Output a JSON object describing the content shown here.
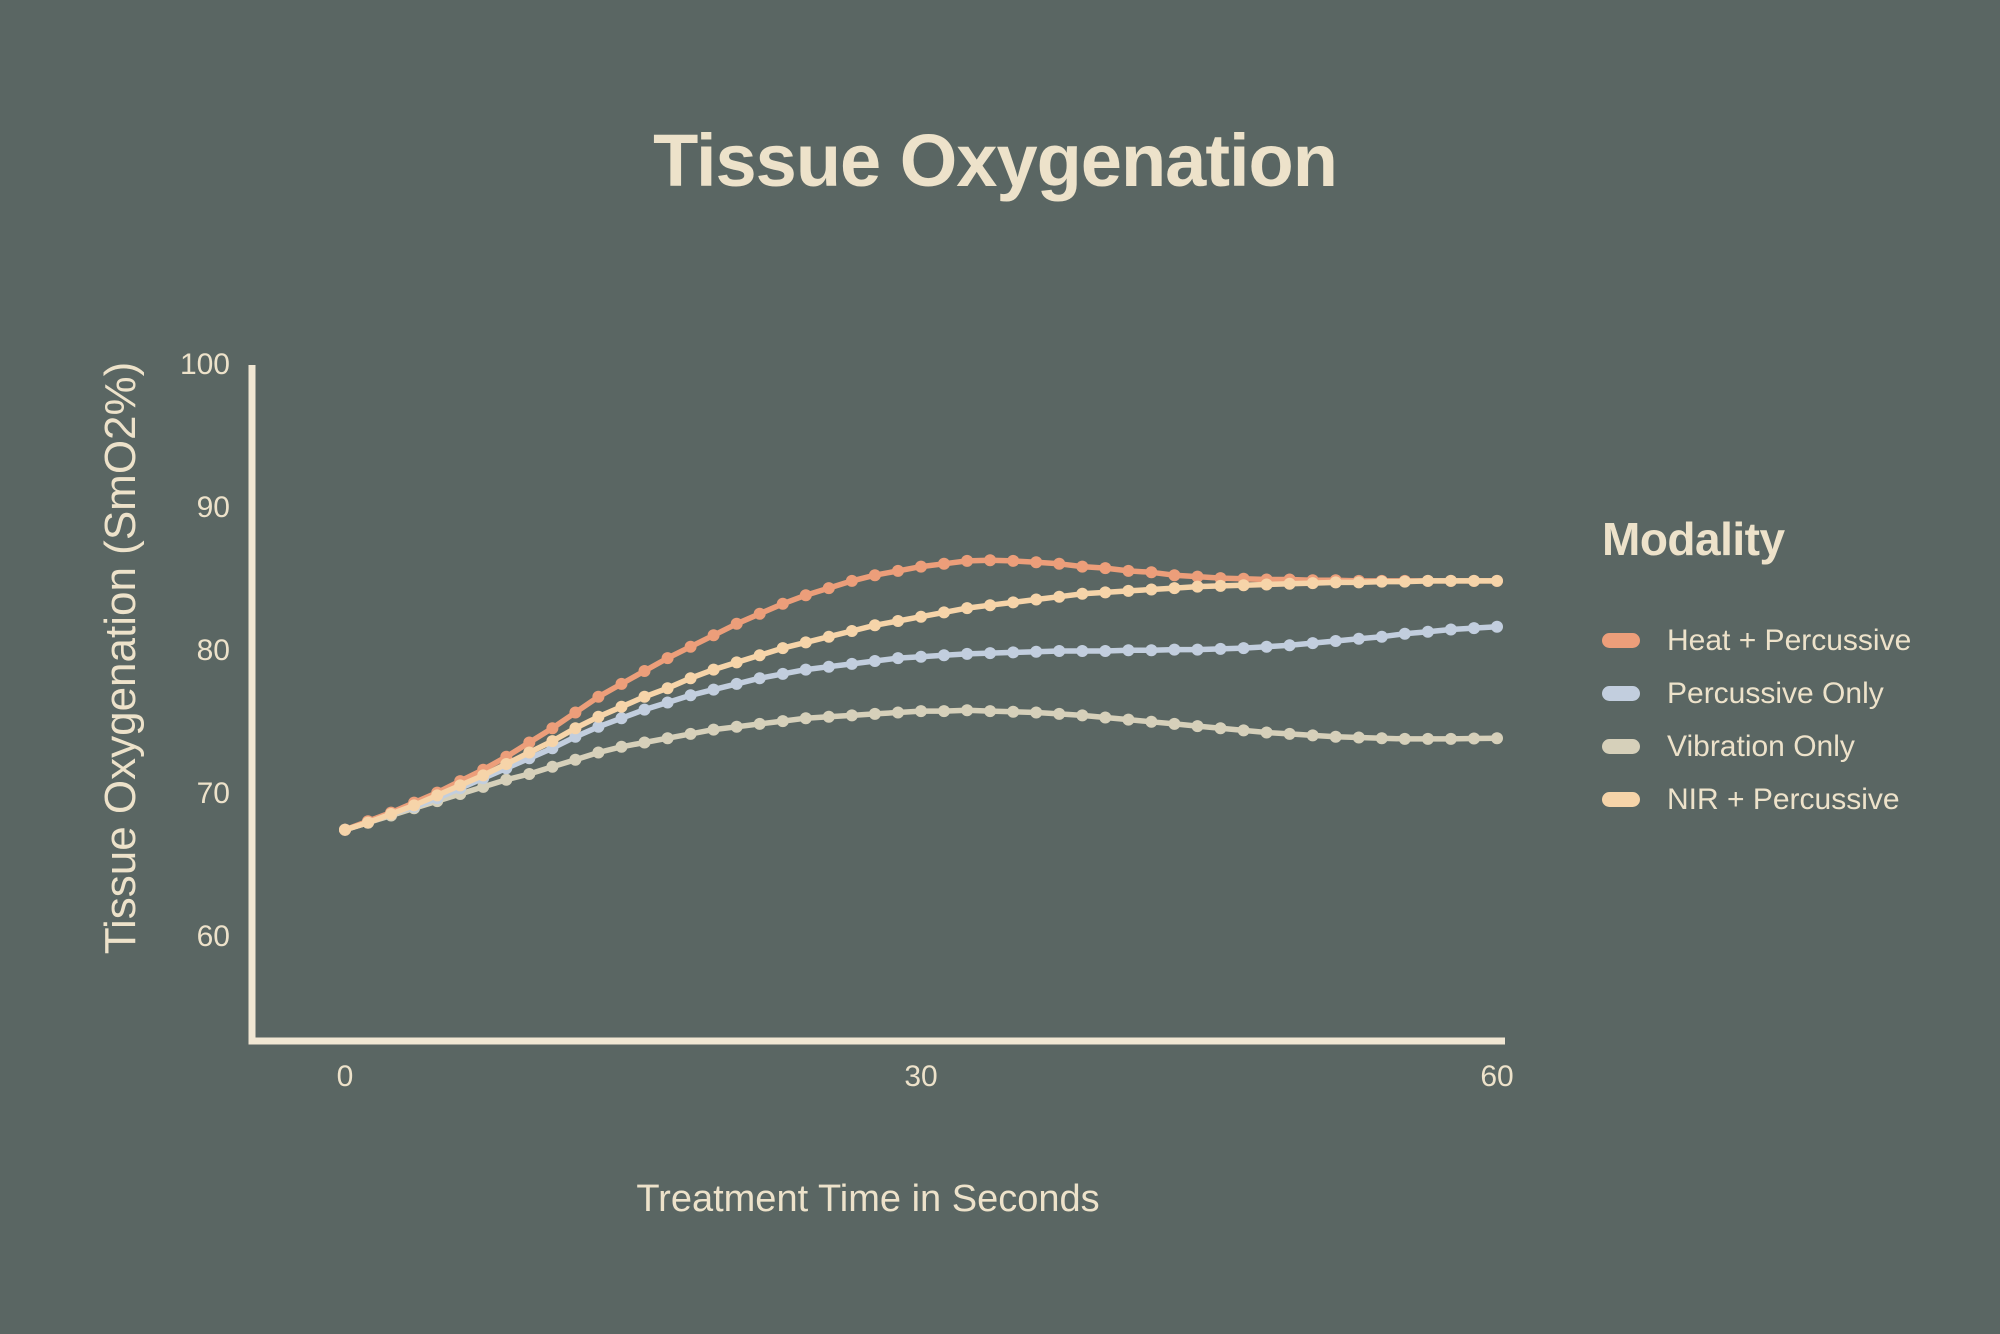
{
  "colors": {
    "background": "#5A6663",
    "text": "#EDE2CA",
    "axis": "#F1E7D3"
  },
  "chart_data": {
    "type": "line",
    "title": "Tissue Oxygenation",
    "xlabel": "Treatment Time in Seconds",
    "ylabel": "Tissue Oxygenation (SmO2%)",
    "legend_title": "Modality",
    "legend_position": "right",
    "grid": false,
    "x_ticks": [
      0,
      30,
      60
    ],
    "y_ticks": [
      100,
      90,
      80,
      70,
      60
    ],
    "xlim": [
      0,
      60
    ],
    "ylim": [
      53,
      100
    ],
    "x_start": 0,
    "x_step": 1.2,
    "point_radius": 6,
    "line_width": 5.5,
    "draw_order": [
      2,
      1,
      0,
      3
    ],
    "series": [
      {
        "name": "Heat + Percussive",
        "color": "#EC9E7A",
        "values": [
          67.5,
          68.1,
          68.7,
          69.4,
          70.1,
          70.9,
          71.7,
          72.6,
          73.6,
          74.6,
          75.7,
          76.8,
          77.7,
          78.6,
          79.5,
          80.3,
          81.1,
          81.9,
          82.6,
          83.3,
          83.9,
          84.4,
          84.9,
          85.3,
          85.6,
          85.9,
          86.1,
          86.3,
          86.35,
          86.3,
          86.2,
          86.1,
          85.9,
          85.8,
          85.6,
          85.5,
          85.3,
          85.2,
          85.1,
          85.05,
          85.0,
          85.0,
          84.95,
          84.95,
          84.9,
          84.9,
          84.9,
          84.9,
          84.9,
          84.9,
          84.9
        ]
      },
      {
        "name": "Percussive Only",
        "color": "#C2CEDE",
        "values": [
          67.5,
          68.0,
          68.6,
          69.1,
          69.7,
          70.4,
          71.1,
          71.8,
          72.5,
          73.2,
          74.0,
          74.7,
          75.3,
          75.9,
          76.4,
          76.9,
          77.3,
          77.7,
          78.1,
          78.4,
          78.7,
          78.9,
          79.1,
          79.3,
          79.5,
          79.6,
          79.7,
          79.8,
          79.85,
          79.9,
          79.95,
          80.0,
          80.0,
          80.0,
          80.05,
          80.05,
          80.1,
          80.1,
          80.15,
          80.2,
          80.3,
          80.4,
          80.55,
          80.7,
          80.85,
          81.0,
          81.2,
          81.35,
          81.5,
          81.6,
          81.7
        ]
      },
      {
        "name": "Vibration Only",
        "color": "#D6D0BA",
        "values": [
          67.5,
          68.0,
          68.5,
          69.0,
          69.5,
          70.0,
          70.5,
          71.0,
          71.4,
          71.9,
          72.4,
          72.9,
          73.3,
          73.6,
          73.9,
          74.2,
          74.5,
          74.7,
          74.9,
          75.1,
          75.3,
          75.4,
          75.5,
          75.6,
          75.7,
          75.8,
          75.8,
          75.85,
          75.8,
          75.75,
          75.7,
          75.6,
          75.5,
          75.35,
          75.2,
          75.05,
          74.9,
          74.75,
          74.6,
          74.45,
          74.3,
          74.2,
          74.1,
          74.0,
          73.95,
          73.9,
          73.85,
          73.85,
          73.85,
          73.88,
          73.9
        ]
      },
      {
        "name": "NIR + Percussive",
        "color": "#F6D4A9",
        "values": [
          67.5,
          68.0,
          68.6,
          69.2,
          69.9,
          70.6,
          71.3,
          72.1,
          72.9,
          73.7,
          74.6,
          75.4,
          76.1,
          76.8,
          77.4,
          78.1,
          78.7,
          79.2,
          79.7,
          80.2,
          80.6,
          81.0,
          81.4,
          81.8,
          82.1,
          82.4,
          82.7,
          83.0,
          83.2,
          83.4,
          83.6,
          83.8,
          84.0,
          84.1,
          84.2,
          84.3,
          84.4,
          84.5,
          84.55,
          84.6,
          84.65,
          84.7,
          84.75,
          84.8,
          84.8,
          84.85,
          84.85,
          84.9,
          84.9,
          84.9,
          84.9
        ]
      }
    ]
  }
}
